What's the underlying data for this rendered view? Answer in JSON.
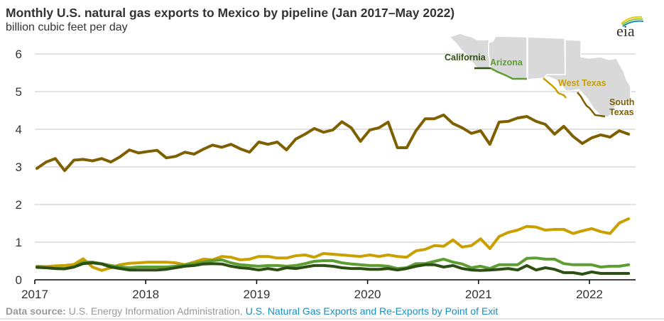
{
  "title": "Monthly U.S. natural gas exports to Mexico by pipeline (Jan 2017–May 2022)",
  "subtitle": "billion cubic feet per day",
  "logo": {
    "text": "eia",
    "icon": "eia-logo-icon"
  },
  "source": {
    "label": "Data source:",
    "text": " U.S. Energy Information Administration, ",
    "link": "U.S. Natural Gas Exports and Re-Exports by Point of Exit"
  },
  "map": {
    "labels": {
      "california": "California",
      "arizona": "Arizona",
      "west_texas": "West Texas",
      "south_texas_1": "South",
      "south_texas_2": "Texas"
    }
  },
  "chart_data": {
    "type": "line",
    "title": "Monthly U.S. natural gas exports to Mexico by pipeline (Jan 2017–May 2022)",
    "ylabel": "billion cubic feet per day",
    "xlabel": "",
    "x_start": "2017-01",
    "x_end": "2022-05",
    "frequency": "monthly",
    "ylim": [
      0,
      6
    ],
    "yticks": [
      "0",
      "1",
      "2",
      "3",
      "4",
      "5",
      "6"
    ],
    "xticks": [
      "2017",
      "2018",
      "2019",
      "2020",
      "2021",
      "2022"
    ],
    "grid": true,
    "legend": "inset map top-right",
    "series": [
      {
        "name": "South Texas",
        "color": "#7f6000",
        "values": [
          2.96,
          3.13,
          3.22,
          2.9,
          3.18,
          3.2,
          3.16,
          3.22,
          3.13,
          3.27,
          3.45,
          3.37,
          3.41,
          3.44,
          3.24,
          3.28,
          3.39,
          3.34,
          3.47,
          3.58,
          3.52,
          3.6,
          3.48,
          3.39,
          3.66,
          3.6,
          3.66,
          3.45,
          3.74,
          3.87,
          4.02,
          3.92,
          3.98,
          4.2,
          4.04,
          3.68,
          3.98,
          4.04,
          4.19,
          3.51,
          3.51,
          3.96,
          4.28,
          4.28,
          4.38,
          4.15,
          4.04,
          3.89,
          3.96,
          3.6,
          4.19,
          4.21,
          4.3,
          4.34,
          4.21,
          4.13,
          3.87,
          4.08,
          3.81,
          3.62,
          3.77,
          3.85,
          3.79,
          3.96,
          3.87
        ]
      },
      {
        "name": "West Texas",
        "color": "#c9a000",
        "values": [
          0.36,
          0.35,
          0.37,
          0.38,
          0.41,
          0.56,
          0.34,
          0.25,
          0.32,
          0.4,
          0.44,
          0.45,
          0.47,
          0.47,
          0.47,
          0.45,
          0.4,
          0.47,
          0.55,
          0.53,
          0.62,
          0.6,
          0.53,
          0.55,
          0.62,
          0.62,
          0.58,
          0.58,
          0.64,
          0.66,
          0.6,
          0.7,
          0.68,
          0.66,
          0.64,
          0.62,
          0.66,
          0.62,
          0.66,
          0.62,
          0.6,
          0.77,
          0.81,
          0.91,
          0.89,
          1.06,
          0.87,
          0.91,
          1.09,
          0.83,
          1.15,
          1.26,
          1.32,
          1.42,
          1.4,
          1.32,
          1.34,
          1.34,
          1.23,
          1.3,
          1.36,
          1.28,
          1.23,
          1.51,
          1.62
        ]
      },
      {
        "name": "Arizona",
        "color": "#5c9e32",
        "values": [
          0.34,
          0.32,
          0.3,
          0.3,
          0.34,
          0.47,
          0.47,
          0.43,
          0.38,
          0.34,
          0.32,
          0.34,
          0.34,
          0.34,
          0.34,
          0.36,
          0.4,
          0.43,
          0.47,
          0.51,
          0.53,
          0.45,
          0.4,
          0.38,
          0.36,
          0.38,
          0.38,
          0.36,
          0.38,
          0.43,
          0.49,
          0.51,
          0.51,
          0.45,
          0.42,
          0.4,
          0.38,
          0.38,
          0.36,
          0.3,
          0.32,
          0.43,
          0.43,
          0.49,
          0.55,
          0.47,
          0.42,
          0.32,
          0.36,
          0.3,
          0.4,
          0.4,
          0.4,
          0.57,
          0.58,
          0.55,
          0.55,
          0.43,
          0.4,
          0.4,
          0.4,
          0.34,
          0.36,
          0.36,
          0.4
        ]
      },
      {
        "name": "California",
        "color": "#2d4f14",
        "values": [
          0.33,
          0.32,
          0.3,
          0.29,
          0.34,
          0.43,
          0.45,
          0.42,
          0.34,
          0.3,
          0.26,
          0.26,
          0.26,
          0.26,
          0.28,
          0.32,
          0.36,
          0.38,
          0.42,
          0.43,
          0.42,
          0.36,
          0.32,
          0.3,
          0.26,
          0.3,
          0.26,
          0.32,
          0.3,
          0.34,
          0.38,
          0.38,
          0.36,
          0.32,
          0.3,
          0.3,
          0.28,
          0.28,
          0.3,
          0.26,
          0.3,
          0.36,
          0.4,
          0.4,
          0.34,
          0.38,
          0.3,
          0.26,
          0.25,
          0.26,
          0.28,
          0.3,
          0.26,
          0.38,
          0.26,
          0.32,
          0.28,
          0.19,
          0.19,
          0.15,
          0.21,
          0.17,
          0.17,
          0.17,
          0.17
        ]
      }
    ]
  }
}
